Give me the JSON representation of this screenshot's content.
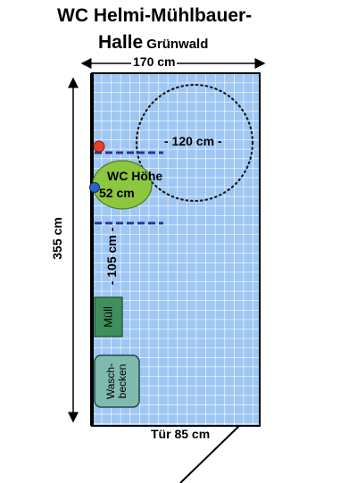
{
  "title": {
    "line1": "WC Helmi-Mühlbauer-",
    "line2": "Halle",
    "location": "Grünwald"
  },
  "dimensions": {
    "width": "170 cm",
    "length": "355 cm",
    "turning_circle": "- 120 cm -",
    "side_distance": "- 105 cm -",
    "door": "Tür 85 cm"
  },
  "fixtures": {
    "toilet": "WC Höhe",
    "toilet_height": "52 cm",
    "trash": "Müll",
    "sink_line1": "Wasch-",
    "sink_line2": "becken"
  },
  "colors": {
    "floor_tile": "#9fc7f3",
    "grid_line": "#ffffff",
    "toilet": "#8dc63f",
    "trash_bin": "#3f8f5c",
    "sink": "#7fb9b0",
    "red_marker": "#e8402a",
    "blue_marker": "#2a62c9",
    "dashed_line": "#2b3593"
  }
}
